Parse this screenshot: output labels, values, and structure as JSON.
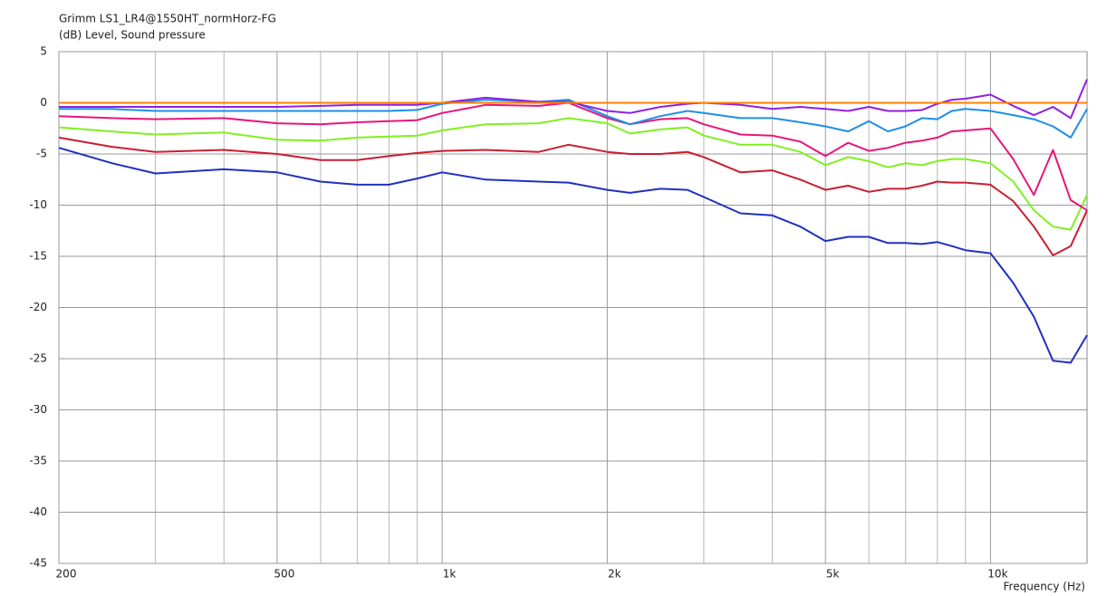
{
  "chart_data": {
    "type": "line",
    "title": "Grimm LS1_LR4@1550HT_normHorz-FG",
    "y_label": "(dB)  Level, Sound pressure",
    "x_label": "Frequency  (Hz)",
    "log_x": true,
    "grid": true,
    "xlim": [
      200,
      15000
    ],
    "ylim": [
      -45,
      5
    ],
    "xticks": [
      200,
      500,
      {
        "value": 1000,
        "label": "1k"
      },
      {
        "value": 2000,
        "label": "2k"
      },
      {
        "value": 5000,
        "label": "5k"
      },
      {
        "value": 10000,
        "label": "10k"
      }
    ],
    "xgrid": [
      300,
      400,
      600,
      700,
      800,
      900,
      3000,
      4000,
      6000,
      7000,
      8000,
      9000
    ],
    "yticks": [
      5,
      0,
      -5,
      -10,
      -15,
      -20,
      -25,
      -30,
      -35,
      -40,
      -45
    ],
    "x": [
      200,
      250,
      300,
      400,
      500,
      600,
      700,
      800,
      900,
      1000,
      1200,
      1500,
      1700,
      2000,
      2200,
      2500,
      2800,
      3000,
      3500,
      4000,
      4500,
      5000,
      5500,
      6000,
      6500,
      7000,
      7500,
      8000,
      8500,
      9000,
      10000,
      11000,
      12000,
      13000,
      14000,
      15000
    ],
    "series": [
      {
        "color": "#ff8000",
        "values": [
          0,
          0,
          0,
          0,
          0,
          0,
          0,
          0,
          0,
          0,
          0,
          0,
          0,
          0,
          0,
          0,
          0,
          0,
          0,
          0,
          0,
          0,
          0,
          0,
          0,
          0,
          0,
          0,
          0,
          0,
          0,
          0,
          0,
          0,
          0,
          0
        ]
      },
      {
        "color": "#9020e0",
        "values": [
          -0.4,
          -0.4,
          -0.4,
          -0.4,
          -0.4,
          -0.3,
          -0.2,
          -0.2,
          -0.2,
          0,
          0.5,
          0.1,
          0.1,
          -0.8,
          -1,
          -0.4,
          -0.1,
          0,
          -0.2,
          -0.6,
          -0.4,
          -0.6,
          -0.8,
          -0.4,
          -0.8,
          -0.8,
          -0.7,
          -0.1,
          0.3,
          0.4,
          0.8,
          -0.3,
          -1.2,
          -0.4,
          -1.5,
          2.3
        ]
      },
      {
        "color": "#1e8fe6",
        "values": [
          -0.6,
          -0.6,
          -0.8,
          -0.8,
          -0.8,
          -0.8,
          -0.8,
          -0.8,
          -0.7,
          -0.1,
          0.3,
          0.1,
          0.3,
          -1.3,
          -2.1,
          -1.3,
          -0.8,
          -1,
          -1.5,
          -1.5,
          -1.9,
          -2.3,
          -2.8,
          -1.8,
          -2.8,
          -2.3,
          -1.5,
          -1.6,
          -0.8,
          -0.6,
          -0.8,
          -1.2,
          -1.6,
          -2.3,
          -3.4,
          -0.6
        ]
      },
      {
        "color": "#e8157c",
        "values": [
          -1.3,
          -1.5,
          -1.6,
          -1.5,
          -2,
          -2.1,
          -1.9,
          -1.8,
          -1.7,
          -1,
          -0.2,
          -0.3,
          0,
          -1.5,
          -2.1,
          -1.6,
          -1.5,
          -2.1,
          -3.1,
          -3.2,
          -3.8,
          -5.2,
          -3.9,
          -4.7,
          -4.4,
          -3.9,
          -3.7,
          -3.4,
          -2.8,
          -2.7,
          -2.5,
          -5.5,
          -9,
          -4.6,
          -9.5,
          -10.5
        ]
      },
      {
        "color": "#80f020",
        "values": [
          -2.4,
          -2.8,
          -3.1,
          -2.9,
          -3.6,
          -3.7,
          -3.4,
          -3.3,
          -3.2,
          -2.7,
          -2.1,
          -2,
          -1.5,
          -2,
          -3,
          -2.6,
          -2.4,
          -3.2,
          -4.1,
          -4.1,
          -4.8,
          -6.1,
          -5.3,
          -5.7,
          -6.3,
          -5.9,
          -6.1,
          -5.7,
          -5.5,
          -5.5,
          -5.9,
          -7.7,
          -10.5,
          -12.1,
          -12.4,
          -9
        ]
      },
      {
        "color": "#c81e32",
        "values": [
          -3.4,
          -4.3,
          -4.8,
          -4.6,
          -5,
          -5.6,
          -5.6,
          -5.2,
          -4.9,
          -4.7,
          -4.6,
          -4.8,
          -4.1,
          -4.8,
          -5,
          -5,
          -4.8,
          -5.3,
          -6.8,
          -6.6,
          -7.5,
          -8.5,
          -8.1,
          -8.7,
          -8.4,
          -8.4,
          -8.1,
          -7.7,
          -7.8,
          -7.8,
          -8,
          -9.6,
          -12.1,
          -14.9,
          -14,
          -10.5
        ]
      },
      {
        "color": "#2030c0",
        "values": [
          -4.4,
          -5.9,
          -6.9,
          -6.5,
          -6.8,
          -7.7,
          -8,
          -8,
          -7.4,
          -6.8,
          -7.5,
          -7.7,
          -7.8,
          -8.5,
          -8.8,
          -8.4,
          -8.5,
          -9.2,
          -10.8,
          -11,
          -12.1,
          -13.5,
          -13.1,
          -13.1,
          -13.7,
          -13.7,
          -13.8,
          -13.6,
          -14,
          -14.4,
          -14.7,
          -17.6,
          -20.9,
          -25.2,
          -25.4,
          -22.7
        ]
      }
    ]
  }
}
